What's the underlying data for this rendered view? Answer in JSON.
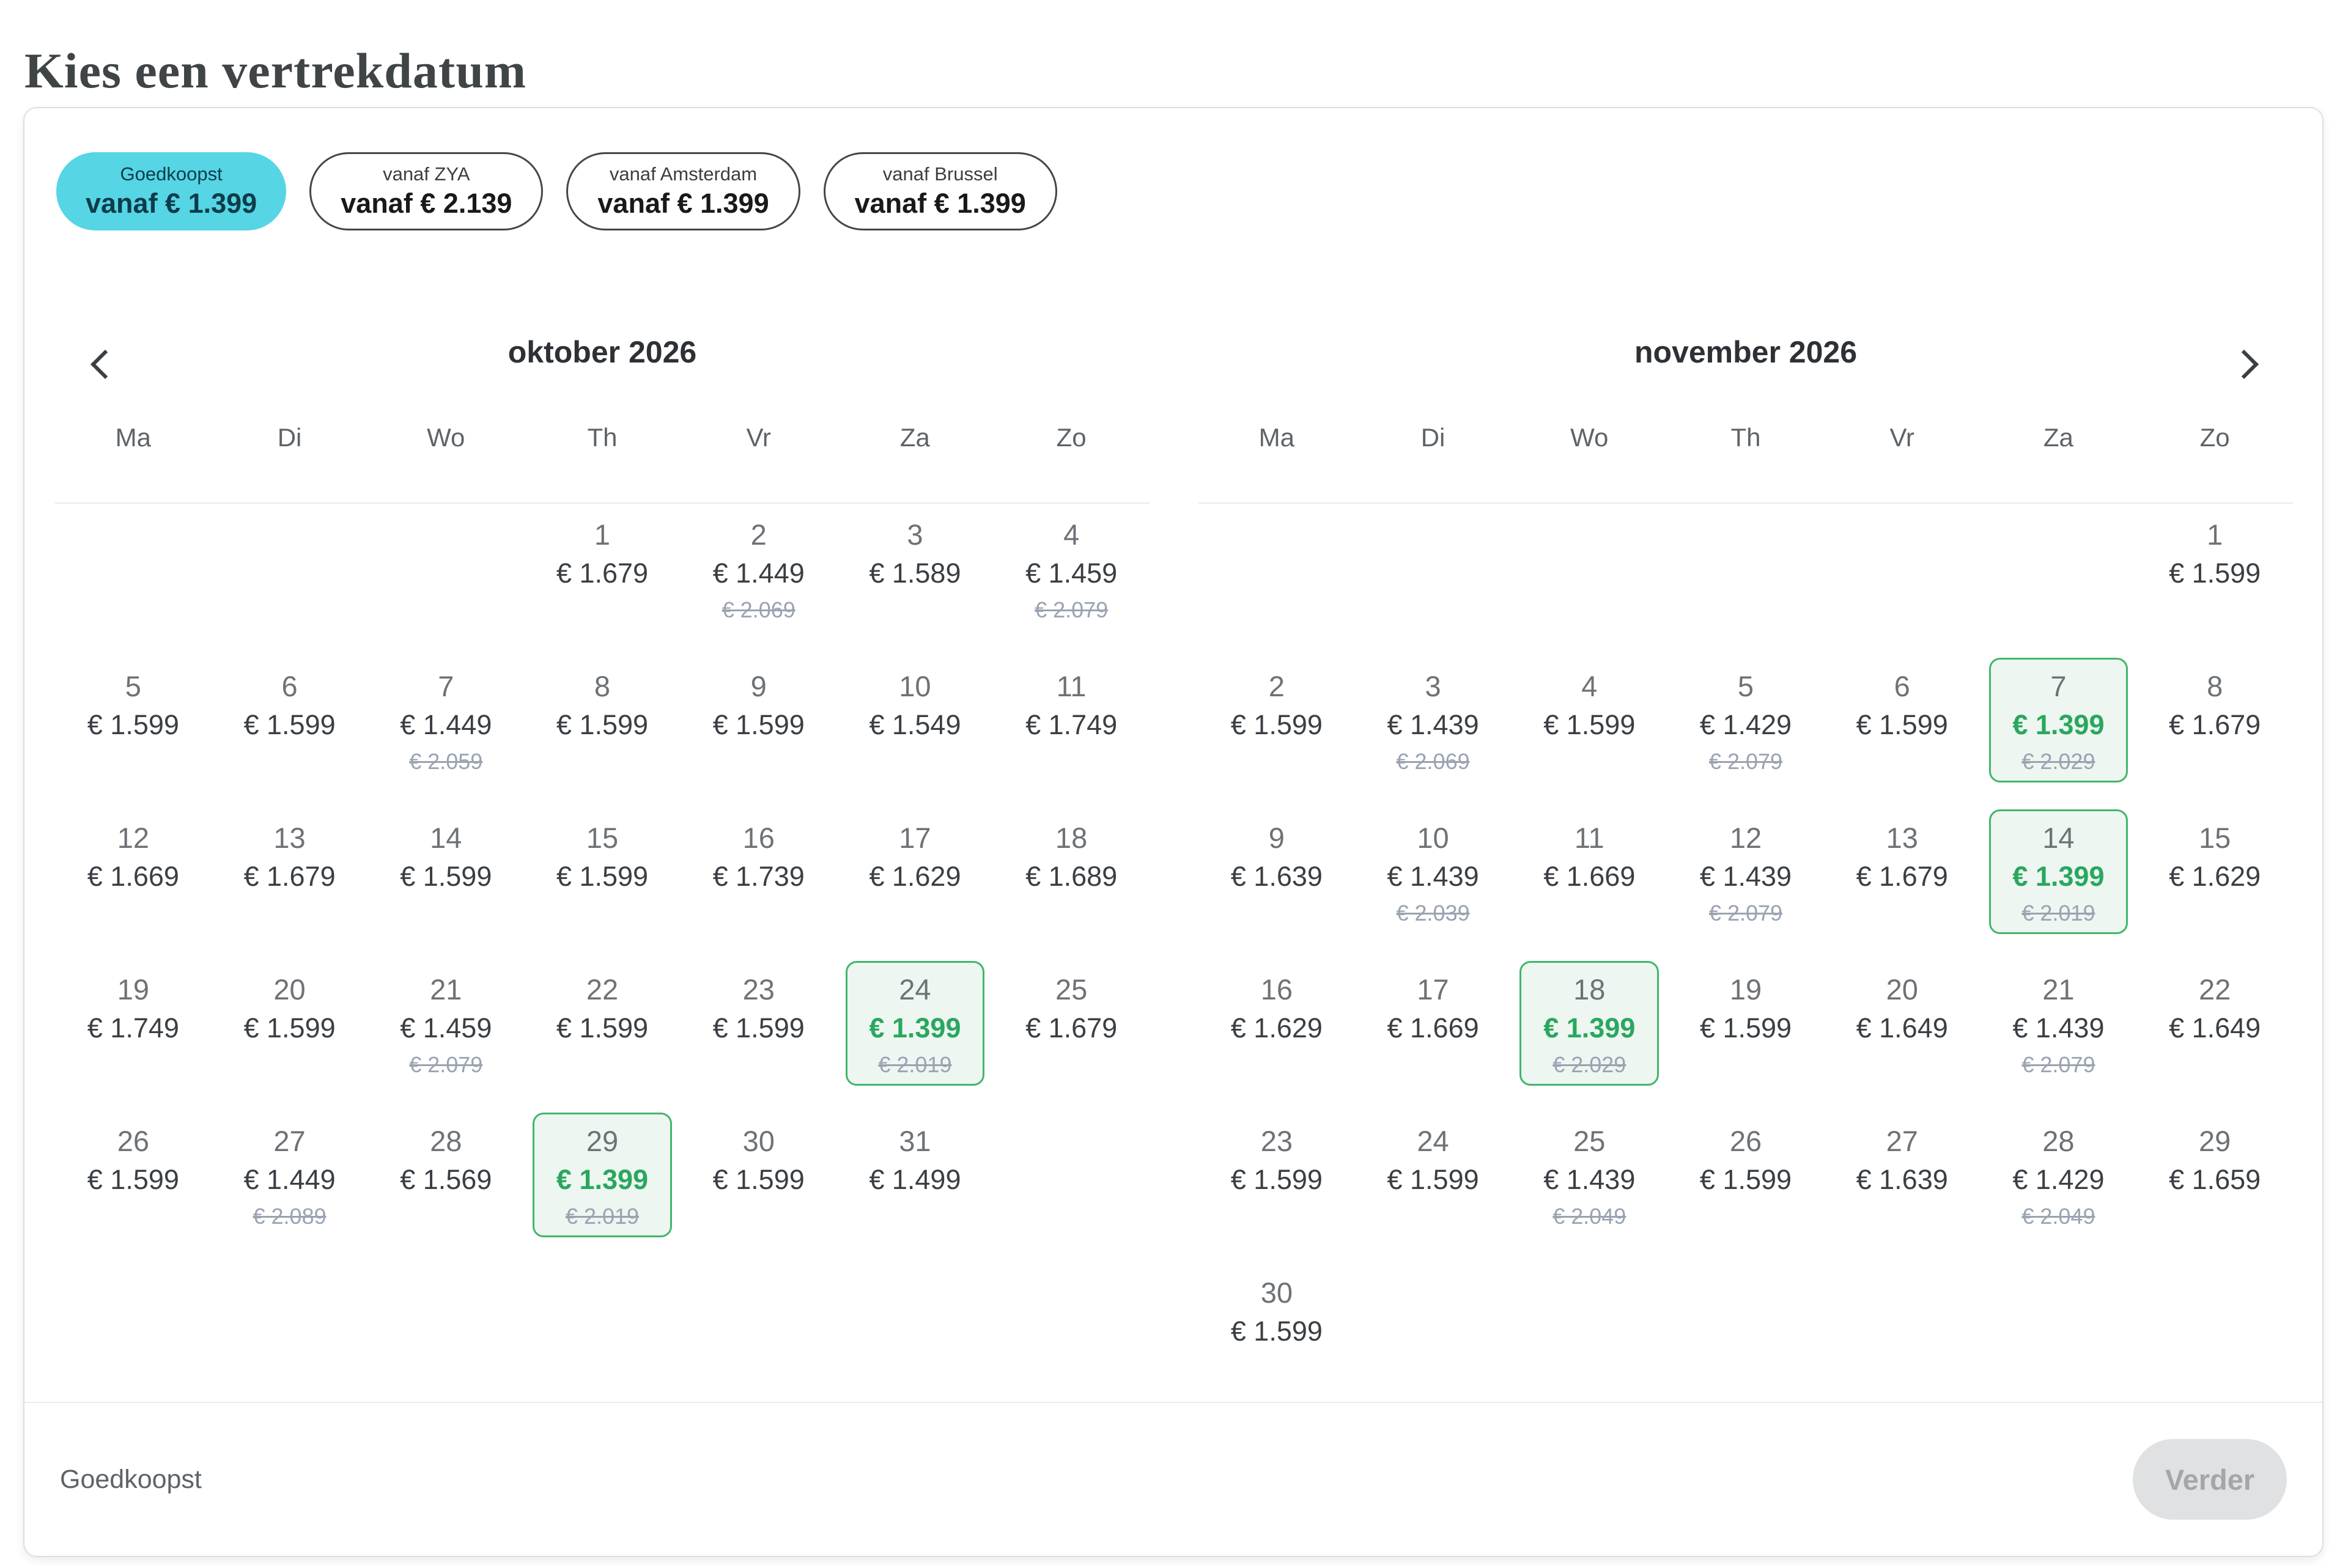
{
  "page": {
    "title": "Kies een vertrekdatum"
  },
  "filters": {
    "chips": [
      {
        "label": "Goedkoopst",
        "price": "vanaf € 1.399",
        "selected": true
      },
      {
        "label": "vanaf ZYA",
        "price": "vanaf € 2.139",
        "selected": false
      },
      {
        "label": "vanaf Amsterdam",
        "price": "vanaf € 1.399",
        "selected": false
      },
      {
        "label": "vanaf Brussel",
        "price": "vanaf € 1.399",
        "selected": false
      }
    ]
  },
  "calendar": {
    "day_headers": [
      "Ma",
      "Di",
      "Wo",
      "Th",
      "Vr",
      "Za",
      "Zo"
    ],
    "months": [
      {
        "title": "oktober 2026",
        "slug": "oktober",
        "weeks": [
          [
            null,
            null,
            null,
            {
              "day": "1",
              "price": "€ 1.679"
            },
            {
              "day": "2",
              "price": "€ 1.449",
              "old_price": "€ 2.069"
            },
            {
              "day": "3",
              "price": "€ 1.589"
            },
            {
              "day": "4",
              "price": "€ 1.459",
              "old_price": "€ 2.079"
            }
          ],
          [
            {
              "day": "5",
              "price": "€ 1.599"
            },
            {
              "day": "6",
              "price": "€ 1.599"
            },
            {
              "day": "7",
              "price": "€ 1.449",
              "old_price": "€ 2.059"
            },
            {
              "day": "8",
              "price": "€ 1.599"
            },
            {
              "day": "9",
              "price": "€ 1.599"
            },
            {
              "day": "10",
              "price": "€ 1.549"
            },
            {
              "day": "11",
              "price": "€ 1.749"
            }
          ],
          [
            {
              "day": "12",
              "price": "€ 1.669"
            },
            {
              "day": "13",
              "price": "€ 1.679"
            },
            {
              "day": "14",
              "price": "€ 1.599"
            },
            {
              "day": "15",
              "price": "€ 1.599"
            },
            {
              "day": "16",
              "price": "€ 1.739"
            },
            {
              "day": "17",
              "price": "€ 1.629"
            },
            {
              "day": "18",
              "price": "€ 1.689"
            }
          ],
          [
            {
              "day": "19",
              "price": "€ 1.749"
            },
            {
              "day": "20",
              "price": "€ 1.599"
            },
            {
              "day": "21",
              "price": "€ 1.459",
              "old_price": "€ 2.079"
            },
            {
              "day": "22",
              "price": "€ 1.599"
            },
            {
              "day": "23",
              "price": "€ 1.599"
            },
            {
              "day": "24",
              "price": "€ 1.399",
              "old_price": "€ 2.019",
              "selected": true
            },
            {
              "day": "25",
              "price": "€ 1.679"
            }
          ],
          [
            {
              "day": "26",
              "price": "€ 1.599"
            },
            {
              "day": "27",
              "price": "€ 1.449",
              "old_price": "€ 2.089"
            },
            {
              "day": "28",
              "price": "€ 1.569"
            },
            {
              "day": "29",
              "price": "€ 1.399",
              "old_price": "€ 2.019",
              "selected": true
            },
            {
              "day": "30",
              "price": "€ 1.599"
            },
            {
              "day": "31",
              "price": "€ 1.499"
            },
            null
          ]
        ]
      },
      {
        "title": "november 2026",
        "slug": "november",
        "weeks": [
          [
            null,
            null,
            null,
            null,
            null,
            null,
            {
              "day": "1",
              "price": "€ 1.599"
            }
          ],
          [
            {
              "day": "2",
              "price": "€ 1.599"
            },
            {
              "day": "3",
              "price": "€ 1.439",
              "old_price": "€ 2.069"
            },
            {
              "day": "4",
              "price": "€ 1.599"
            },
            {
              "day": "5",
              "price": "€ 1.429",
              "old_price": "€ 2.079"
            },
            {
              "day": "6",
              "price": "€ 1.599"
            },
            {
              "day": "7",
              "price": "€ 1.399",
              "old_price": "€ 2.029",
              "selected": true
            },
            {
              "day": "8",
              "price": "€ 1.679"
            }
          ],
          [
            {
              "day": "9",
              "price": "€ 1.639"
            },
            {
              "day": "10",
              "price": "€ 1.439",
              "old_price": "€ 2.039"
            },
            {
              "day": "11",
              "price": "€ 1.669"
            },
            {
              "day": "12",
              "price": "€ 1.439",
              "old_price": "€ 2.079"
            },
            {
              "day": "13",
              "price": "€ 1.679"
            },
            {
              "day": "14",
              "price": "€ 1.399",
              "old_price": "€ 2.019",
              "selected": true
            },
            {
              "day": "15",
              "price": "€ 1.629"
            }
          ],
          [
            {
              "day": "16",
              "price": "€ 1.629"
            },
            {
              "day": "17",
              "price": "€ 1.669"
            },
            {
              "day": "18",
              "price": "€ 1.399",
              "old_price": "€ 2.029",
              "selected": true
            },
            {
              "day": "19",
              "price": "€ 1.599"
            },
            {
              "day": "20",
              "price": "€ 1.649"
            },
            {
              "day": "21",
              "price": "€ 1.439",
              "old_price": "€ 2.079"
            },
            {
              "day": "22",
              "price": "€ 1.649"
            }
          ],
          [
            {
              "day": "23",
              "price": "€ 1.599"
            },
            {
              "day": "24",
              "price": "€ 1.599"
            },
            {
              "day": "25",
              "price": "€ 1.439",
              "old_price": "€ 2.049"
            },
            {
              "day": "26",
              "price": "€ 1.599"
            },
            {
              "day": "27",
              "price": "€ 1.639"
            },
            {
              "day": "28",
              "price": "€ 1.429",
              "old_price": "€ 2.049"
            },
            {
              "day": "29",
              "price": "€ 1.659"
            }
          ],
          [
            {
              "day": "30",
              "price": "€ 1.599"
            },
            null,
            null,
            null,
            null,
            null,
            null
          ]
        ]
      }
    ]
  },
  "footer": {
    "selected_filter": "Goedkoopst",
    "continue_label": "Verder",
    "continue_enabled": false
  },
  "colors": {
    "accent_cyan": "#56d5e4",
    "chip_text_dark_teal": "#0c3c4a",
    "selected_green_border": "#41b56d",
    "selected_green_bg": "#edf6f0",
    "selected_green_text": "#2aa75f",
    "strike_gray": "#9aa3b1"
  }
}
